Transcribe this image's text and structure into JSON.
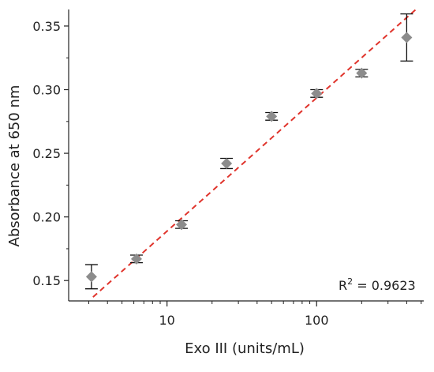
{
  "chart_data": {
    "type": "scatter",
    "title": "",
    "xlabel": "Exo III (units/mL)",
    "ylabel": "Absorbance at 650 nm",
    "xscale": "log",
    "xlim": [
      2.2,
      520
    ],
    "ylim": [
      0.134,
      0.363
    ],
    "x_ticks": [
      10,
      100
    ],
    "x_tick_labels": [
      "10",
      "100"
    ],
    "y_ticks": [
      0.15,
      0.2,
      0.25,
      0.3,
      0.35
    ],
    "y_tick_labels": [
      "0.15",
      "0.20",
      "0.25",
      "0.30",
      "0.35"
    ],
    "grid": false,
    "legend": "none",
    "series": [
      {
        "marker": "diamond",
        "color": "#8c8c8c",
        "points": [
          {
            "x": 3.125,
            "y": 0.153,
            "err": 0.0095
          },
          {
            "x": 6.25,
            "y": 0.167,
            "err": 0.003
          },
          {
            "x": 12.5,
            "y": 0.194,
            "err": 0.003
          },
          {
            "x": 25,
            "y": 0.242,
            "err": 0.004
          },
          {
            "x": 50,
            "y": 0.279,
            "err": 0.003
          },
          {
            "x": 100,
            "y": 0.297,
            "err": 0.003
          },
          {
            "x": 200,
            "y": 0.313,
            "err": 0.003
          },
          {
            "x": 400,
            "y": 0.341,
            "err": 0.0185
          }
        ]
      }
    ],
    "fit_line": {
      "style": "dashed",
      "color": "#e0342c",
      "x": [
        3.2,
        460
      ],
      "y": [
        0.137,
        0.363
      ]
    },
    "annotations": {
      "r2_base": "R",
      "r2_sup": "2",
      "r2_value": " = 0.9623"
    }
  }
}
